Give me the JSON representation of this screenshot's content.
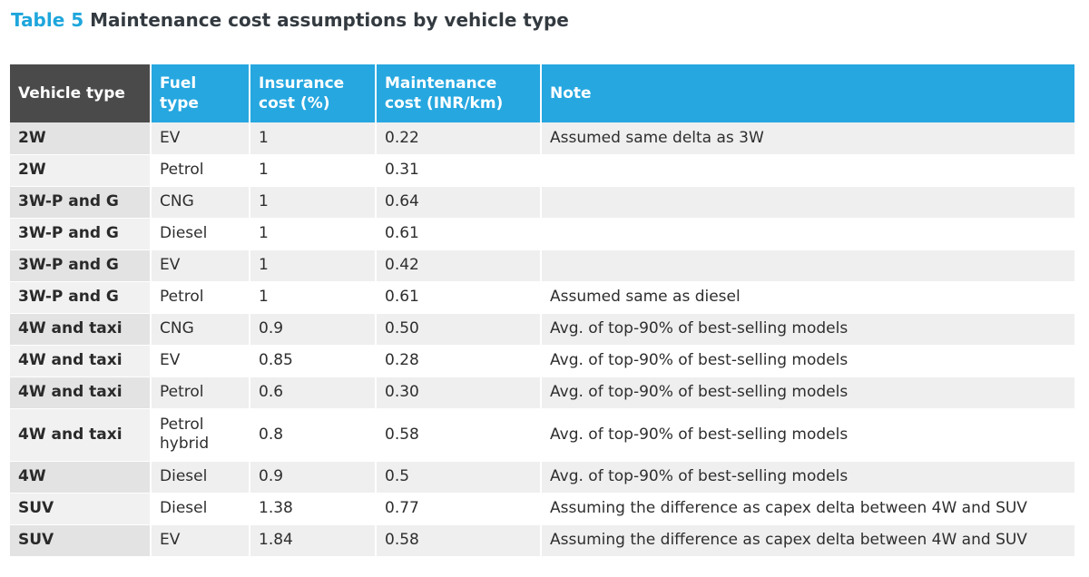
{
  "caption": {
    "label": "Table 5",
    "title": "Maintenance cost assumptions by vehicle type"
  },
  "table": {
    "headers": [
      "Vehicle type",
      "Fuel type",
      "Insurance cost (%)",
      "Maintenance cost (INR/km)",
      "Note"
    ],
    "rows": [
      [
        "2W",
        "EV",
        "1",
        "0.22",
        "Assumed same delta as 3W"
      ],
      [
        "2W",
        "Petrol",
        "1",
        "0.31",
        ""
      ],
      [
        "3W-P and G",
        "CNG",
        "1",
        "0.64",
        ""
      ],
      [
        "3W-P and G",
        "Diesel",
        "1",
        "0.61",
        ""
      ],
      [
        "3W-P and G",
        "EV",
        "1",
        "0.42",
        ""
      ],
      [
        "3W-P and G",
        "Petrol",
        "1",
        "0.61",
        "Assumed same as diesel"
      ],
      [
        "4W and taxi",
        "CNG",
        "0.9",
        "0.50",
        "Avg. of top-90% of best-selling models"
      ],
      [
        "4W and taxi",
        "EV",
        "0.85",
        "0.28",
        "Avg. of top-90% of best-selling models"
      ],
      [
        "4W and taxi",
        "Petrol",
        "0.6",
        "0.30",
        "Avg. of top-90% of best-selling models"
      ],
      [
        "4W and taxi",
        "Petrol hybrid",
        "0.8",
        "0.58",
        "Avg. of top-90% of best-selling models"
      ],
      [
        "4W",
        "Diesel",
        "0.9",
        "0.5",
        "Avg. of top-90% of best-selling models"
      ],
      [
        "SUV",
        "Diesel",
        "1.38",
        "0.77",
        "Assuming the difference as capex delta between 4W and SUV"
      ],
      [
        "SUV",
        "EV",
        "1.84",
        "0.58",
        "Assuming the difference as capex delta between 4W and SUV"
      ]
    ]
  }
}
